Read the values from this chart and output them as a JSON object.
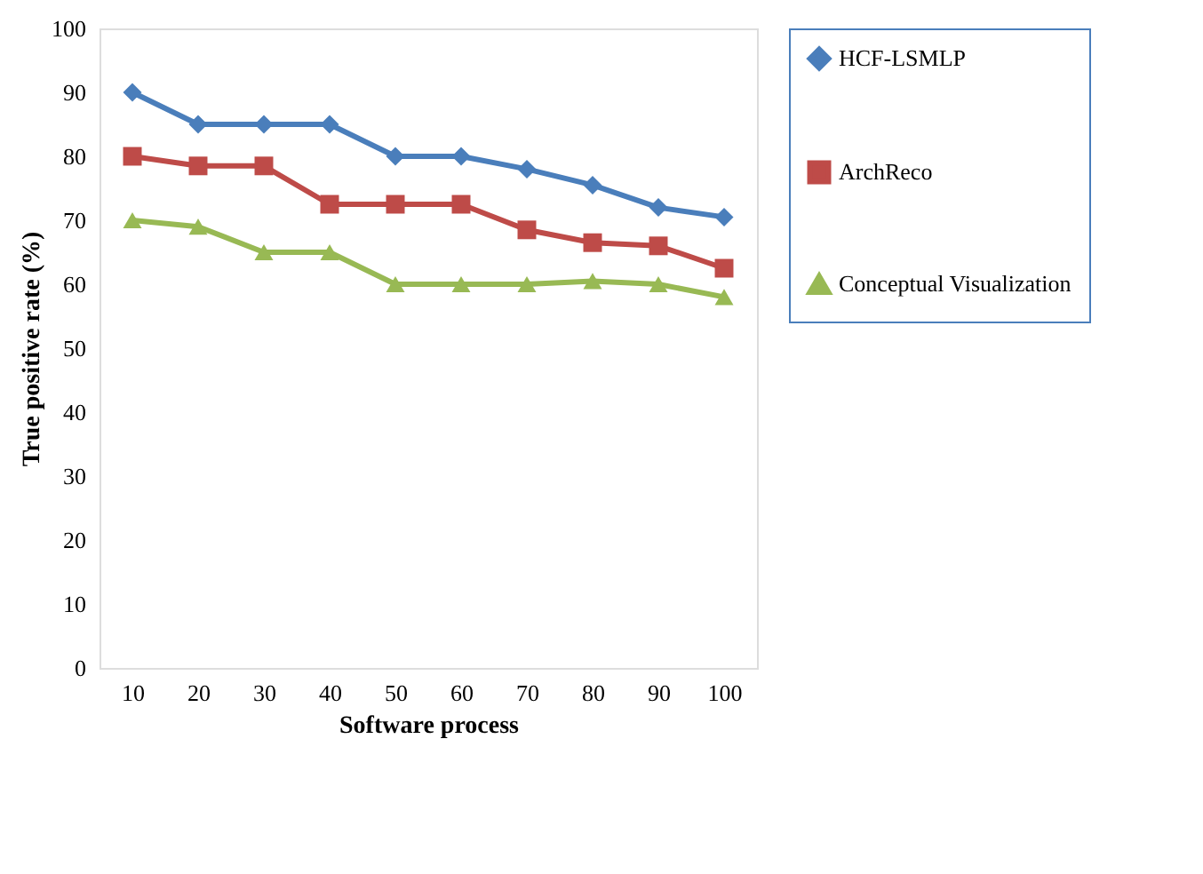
{
  "chart_data": {
    "type": "line",
    "xlabel": "Software process",
    "ylabel": "True positive rate (%)",
    "categories": [
      "10",
      "20",
      "30",
      "40",
      "50",
      "60",
      "70",
      "80",
      "90",
      "100"
    ],
    "series": [
      {
        "name": "HCF-LSMLP",
        "color": "#4a7ebb",
        "marker": "diamond",
        "values": [
          90,
          85,
          85,
          85,
          80,
          80,
          78,
          75.5,
          72,
          70.5
        ]
      },
      {
        "name": "ArchReco",
        "color": "#be4b48",
        "marker": "square",
        "values": [
          80,
          78.5,
          78.5,
          72.5,
          72.5,
          72.5,
          68.5,
          66.5,
          66,
          62.5
        ]
      },
      {
        "name": "Conceptual Visualization",
        "color": "#98b954",
        "marker": "triangle",
        "values": [
          70,
          69,
          65,
          65,
          60,
          60,
          60,
          60.5,
          60,
          58
        ]
      }
    ],
    "ylim": [
      0,
      100
    ],
    "yticks": [
      0,
      10,
      20,
      30,
      40,
      50,
      60,
      70,
      80,
      90,
      100
    ],
    "grid": false,
    "legend": "right",
    "line_style": "solid"
  }
}
